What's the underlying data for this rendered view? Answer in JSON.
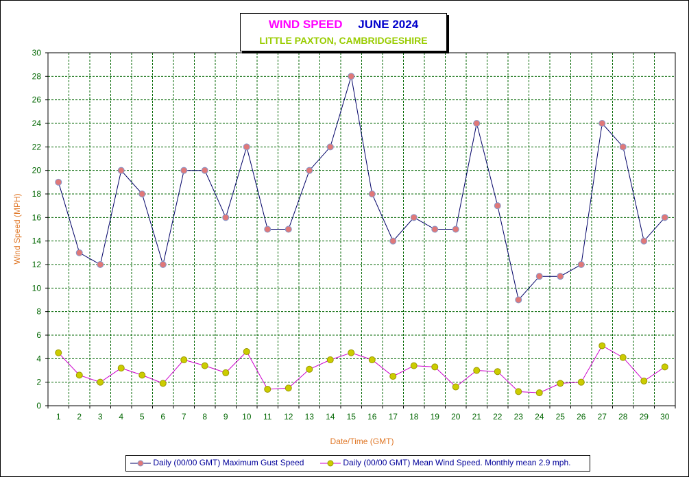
{
  "title": {
    "main": "WIND SPEED",
    "period": "JUNE 2024",
    "location": "LITTLE PAXTON, CAMBRIDGESHIRE"
  },
  "legend": {
    "gust": "Daily (00/00 GMT) Maximum Gust Speed",
    "mean": "Daily (00/00 GMT) Mean Wind Speed. Monthly mean 2.9 mph."
  },
  "colors": {
    "gust_line": "#000066",
    "gust_marker": "#e07878",
    "mean_line": "#cc00cc",
    "mean_marker": "#cccc00",
    "axis_text": "#006600",
    "axis_label": "#e07828",
    "grid": "#006600"
  },
  "chart_data": {
    "type": "line",
    "xlabel": "Date/Time (GMT)",
    "ylabel": "Wind Speed (MPH)",
    "ylim": [
      0,
      30
    ],
    "ytick_step": 2,
    "grid": true,
    "legend_position": "bottom",
    "x": [
      1,
      2,
      3,
      4,
      5,
      6,
      7,
      8,
      9,
      10,
      11,
      12,
      13,
      14,
      15,
      16,
      17,
      18,
      19,
      20,
      21,
      22,
      23,
      24,
      25,
      26,
      27,
      28,
      29,
      30
    ],
    "series": [
      {
        "name": "Daily (00/00 GMT) Maximum Gust Speed",
        "values": [
          19,
          13,
          12,
          20,
          18,
          12,
          20,
          20,
          16,
          22,
          15,
          15,
          20,
          22,
          28,
          18,
          14,
          16,
          15,
          15,
          24,
          17,
          9,
          11,
          11,
          12,
          24,
          22,
          14,
          16
        ]
      },
      {
        "name": "Daily (00/00 GMT) Mean Wind Speed. Monthly mean 2.9 mph.",
        "values": [
          4.5,
          2.6,
          2.0,
          3.2,
          2.6,
          1.9,
          3.9,
          3.4,
          2.8,
          4.6,
          1.4,
          1.5,
          3.1,
          3.9,
          4.5,
          3.9,
          2.5,
          3.4,
          3.3,
          1.6,
          3.0,
          2.9,
          1.2,
          1.1,
          1.9,
          2.0,
          5.1,
          4.1,
          2.1,
          3.3
        ]
      }
    ]
  }
}
